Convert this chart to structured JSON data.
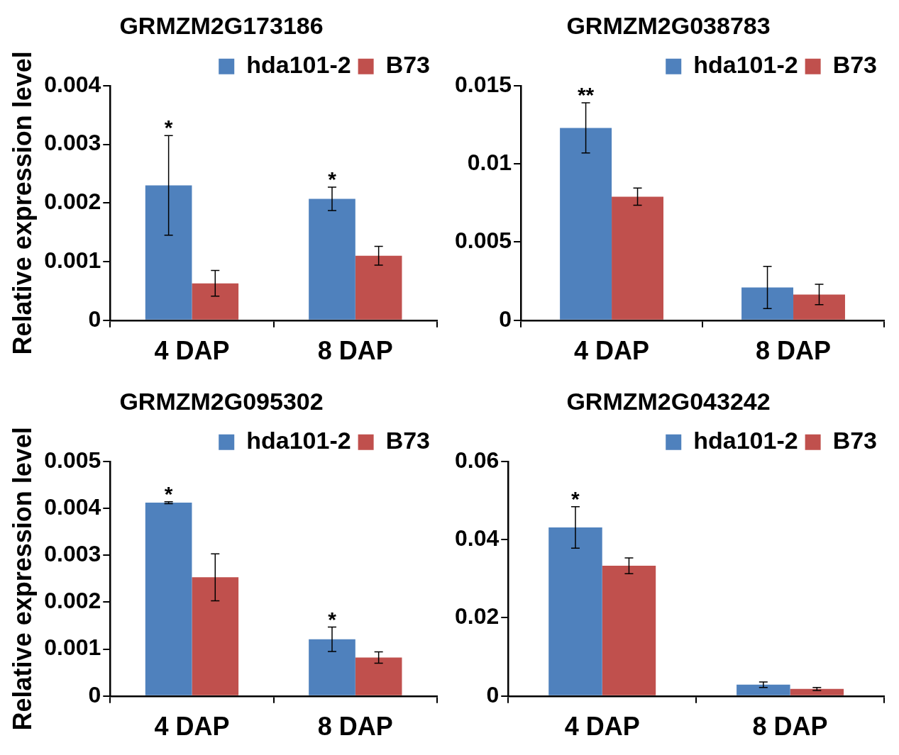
{
  "chart_data": [
    {
      "type": "bar",
      "title": "GRMZM2G173186",
      "ylabel": "Relative expression level",
      "categories": [
        "4 DAP",
        "8 DAP"
      ],
      "series": [
        {
          "name": "hda101-2",
          "color": "#4f81bd",
          "values": [
            0.0023,
            0.00207
          ],
          "errors": [
            0.00085,
            0.0002
          ]
        },
        {
          "name": "B73",
          "color": "#c0504d",
          "values": [
            0.00063,
            0.0011
          ],
          "errors": [
            0.00022,
            0.00016
          ]
        }
      ],
      "ylim": [
        0,
        0.004
      ],
      "yticks": [
        0,
        0.001,
        0.002,
        0.003,
        0.004
      ],
      "grid": false,
      "legend": "top right",
      "annotations": [
        {
          "text": "*",
          "x": "4 DAP",
          "y": 0.0023
        },
        {
          "text": "*",
          "x": "8 DAP",
          "y": 0.00207
        }
      ]
    },
    {
      "type": "bar",
      "title": "GRMZM2G038783",
      "categories": [
        "4 DAP",
        "8 DAP"
      ],
      "series": [
        {
          "name": "hda101-2",
          "color": "#4f81bd",
          "values": [
            0.0123,
            0.0021
          ],
          "errors": [
            0.0016,
            0.00135
          ]
        },
        {
          "name": "B73",
          "color": "#c0504d",
          "values": [
            0.0079,
            0.00165
          ],
          "errors": [
            0.00055,
            0.00065
          ]
        }
      ],
      "ylim": [
        0,
        0.015
      ],
      "yticks": [
        0,
        {
          "value": 0.005,
          "label": "0.005"
        },
        {
          "value": 0.01,
          "label": "0.01"
        },
        {
          "value": 0.015,
          "label": "0.015"
        }
      ],
      "grid": false,
      "legend": "top right",
      "annotations": [
        {
          "text": "**",
          "x": "4 DAP",
          "y": 0.0123
        }
      ]
    },
    {
      "type": "bar",
      "title": "GRMZM2G095302",
      "ylabel": "Relative expression level",
      "categories": [
        "4 DAP",
        "8 DAP"
      ],
      "series": [
        {
          "name": "hda101-2",
          "color": "#4f81bd",
          "values": [
            0.00412,
            0.00121
          ],
          "errors": [
            2e-05,
            0.00026
          ]
        },
        {
          "name": "B73",
          "color": "#c0504d",
          "values": [
            0.00253,
            0.00082
          ],
          "errors": [
            0.0005,
            0.00012
          ]
        }
      ],
      "ylim": [
        0,
        0.005
      ],
      "yticks": [
        0,
        0.001,
        0.002,
        0.003,
        0.004,
        0.005
      ],
      "grid": false,
      "legend": "top right",
      "annotations": [
        {
          "text": "*",
          "x": "4 DAP",
          "y": 0.00412
        },
        {
          "text": "*",
          "x": "8 DAP",
          "y": 0.00121
        }
      ]
    },
    {
      "type": "bar",
      "title": "GRMZM2G043242",
      "categories": [
        "4 DAP",
        "8 DAP"
      ],
      "series": [
        {
          "name": "hda101-2",
          "color": "#4f81bd",
          "values": [
            0.0431,
            0.0029
          ],
          "errors": [
            0.0053,
            0.0007
          ]
        },
        {
          "name": "B73",
          "color": "#c0504d",
          "values": [
            0.0333,
            0.0018
          ],
          "errors": [
            0.002,
            0.0004
          ]
        }
      ],
      "ylim": [
        0,
        0.06
      ],
      "yticks": [
        0,
        {
          "value": 0.02,
          "label": "0.02"
        },
        {
          "value": 0.04,
          "label": "0.04"
        },
        {
          "value": 0.06,
          "label": "0.06"
        }
      ],
      "grid": false,
      "legend": "top right",
      "annotations": [
        {
          "text": "*",
          "x": "4 DAP",
          "y": 0.0431
        }
      ]
    }
  ]
}
